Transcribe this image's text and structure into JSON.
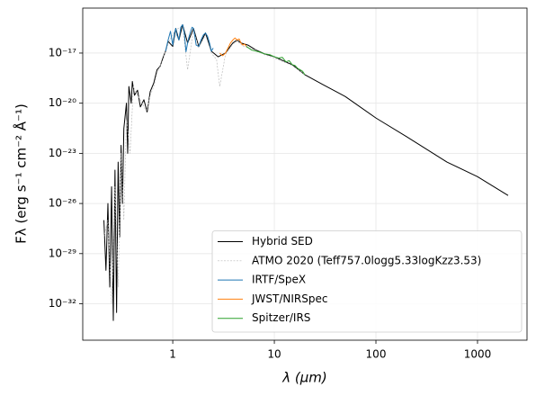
{
  "chart_data": {
    "type": "line",
    "xlabel": "λ (μm)",
    "ylabel": "Fλ (erg s⁻¹ cm⁻² Å⁻¹)",
    "xscale": "log",
    "yscale": "log",
    "xlim": [
      0.13,
      3070
    ],
    "ylim": [
      6.6e-35,
      4.9e-15
    ],
    "xticks": [
      1,
      10,
      100,
      1000
    ],
    "yticks": [
      {
        "value": 1e-32,
        "label": "10⁻³²"
      },
      {
        "value": 1e-29,
        "label": "10⁻²⁹"
      },
      {
        "value": 1e-26,
        "label": "10⁻²⁶"
      },
      {
        "value": 1e-23,
        "label": "10⁻²³"
      },
      {
        "value": 1e-20,
        "label": "10⁻²⁰"
      },
      {
        "value": 1e-17,
        "label": "10⁻¹⁷"
      }
    ],
    "grid": true,
    "legend": "lower right",
    "series": [
      {
        "name": "Hybrid SED",
        "color": "#000000",
        "style": "solid",
        "x": [
          0.21,
          0.22,
          0.23,
          0.24,
          0.25,
          0.26,
          0.27,
          0.28,
          0.29,
          0.3,
          0.31,
          0.32,
          0.33,
          0.35,
          0.36,
          0.37,
          0.39,
          0.4,
          0.42,
          0.45,
          0.48,
          0.52,
          0.56,
          0.6,
          0.65,
          0.7,
          0.75,
          0.8,
          0.85,
          0.9,
          1.0,
          1.07,
          1.15,
          1.25,
          1.4,
          1.6,
          1.8,
          2.1,
          2.4,
          2.8,
          3.3,
          3.9,
          4.3,
          4.7,
          5.5,
          6.5,
          8,
          10,
          15,
          20,
          30,
          50,
          100,
          200,
          500,
          1000,
          2000
        ],
        "values": [
          1e-27,
          1e-30,
          1e-26,
          1e-31,
          1e-25,
          1e-33,
          1e-24,
          3e-33,
          3e-24,
          1e-28,
          3e-23,
          1e-26,
          3e-22,
          1e-20,
          1e-23,
          1e-19,
          1e-20,
          2e-19,
          3e-20,
          6e-20,
          6e-21,
          1.6e-20,
          3e-21,
          5e-20,
          1.6e-19,
          1e-18,
          1.6e-18,
          5e-18,
          1.3e-17,
          5e-17,
          2.5e-17,
          3e-16,
          6e-17,
          5e-16,
          4e-17,
          3e-16,
          2.5e-17,
          1.6e-16,
          1.3e-17,
          6e-18,
          1e-17,
          4e-17,
          6e-17,
          4e-17,
          3e-17,
          1.6e-17,
          9e-18,
          6e-18,
          2e-18,
          5e-19,
          1.3e-19,
          2.5e-20,
          1.3e-21,
          1e-22,
          3e-24,
          4e-25,
          3e-26
        ]
      },
      {
        "name": "ATMO 2020 (Teff757.0logg5.33logKzz3.53)",
        "color": "#bbbbbb",
        "style": "dashed",
        "x": [
          0.21,
          0.23,
          0.25,
          0.27,
          0.29,
          0.31,
          0.33,
          0.35,
          0.38,
          0.41,
          0.45,
          0.5,
          0.55,
          0.6,
          0.65,
          0.7,
          0.8,
          0.9,
          1.07,
          1.25,
          1.4,
          1.6,
          1.8,
          2.1,
          2.4,
          2.7,
          2.9,
          3.3,
          3.9,
          4.3,
          5,
          6.5,
          8,
          10,
          15,
          20
        ],
        "values": [
          1e-28,
          1e-27,
          1e-32,
          1e-25,
          1e-31,
          1e-23,
          1e-27,
          1e-21,
          1e-23,
          1e-19,
          3e-20,
          1e-20,
          3e-21,
          3e-20,
          1e-19,
          6e-19,
          4e-18,
          4e-17,
          2.5e-16,
          4e-16,
          1e-18,
          2.5e-16,
          2e-17,
          1.2e-16,
          1e-17,
          4e-18,
          1e-19,
          8e-18,
          3.5e-17,
          5e-17,
          2.5e-17,
          1.5e-17,
          8e-18,
          5e-18,
          1.8e-18,
          5e-19
        ]
      },
      {
        "name": "IRTF/SpeX",
        "color": "#1f77b4",
        "style": "solid",
        "x": [
          0.85,
          0.9,
          0.95,
          1.0,
          1.04,
          1.07,
          1.1,
          1.15,
          1.2,
          1.25,
          1.3,
          1.35,
          1.4,
          1.45,
          1.5,
          1.55,
          1.6,
          1.65,
          1.7,
          1.8,
          1.9,
          2.0,
          2.1,
          2.2,
          2.3,
          2.4,
          2.5
        ],
        "values": [
          1.3e-17,
          6e-17,
          2e-16,
          3e-17,
          1.5e-16,
          3e-16,
          1.2e-16,
          6e-17,
          3.5e-16,
          5e-16,
          1.6e-16,
          1.2e-17,
          4e-17,
          1e-16,
          2e-16,
          3.5e-16,
          3e-16,
          1e-16,
          3e-17,
          2.5e-17,
          6e-17,
          1.2e-16,
          1.6e-16,
          1e-16,
          4e-17,
          1.3e-17,
          2e-17
        ]
      },
      {
        "name": "JWST/NIRSpec",
        "color": "#ff7f0e",
        "style": "solid",
        "x": [
          2.9,
          3.1,
          3.3,
          3.5,
          3.7,
          3.9,
          4.1,
          4.3,
          4.5,
          4.7,
          4.9,
          5.1,
          5.3
        ],
        "values": [
          1e-17,
          7e-18,
          1e-17,
          2e-17,
          4e-17,
          6e-17,
          8e-17,
          6e-17,
          7e-17,
          4e-17,
          3e-17,
          3.5e-17,
          2.5e-17
        ]
      },
      {
        "name": "Spitzer/IRS",
        "color": "#2ca02c",
        "style": "solid",
        "x": [
          5.3,
          6,
          7,
          8,
          9,
          10,
          11,
          12,
          13,
          14,
          15,
          16,
          17,
          18,
          19,
          20
        ],
        "values": [
          2.5e-17,
          1.5e-17,
          1.2e-17,
          9e-18,
          8e-18,
          6e-18,
          5e-18,
          5.5e-18,
          3e-18,
          3.5e-18,
          2e-18,
          1.8e-18,
          1.2e-18,
          1e-18,
          8e-19,
          5e-19
        ]
      }
    ]
  }
}
